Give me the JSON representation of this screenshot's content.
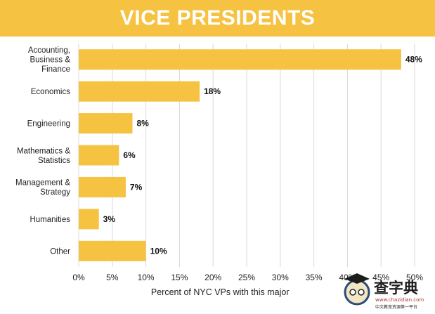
{
  "header": {
    "title": "VICE PRESIDENTS"
  },
  "chart_data": {
    "type": "bar",
    "orientation": "horizontal",
    "categories": [
      [
        "Accounting,",
        "Business &",
        "Finance"
      ],
      [
        "Economics"
      ],
      [
        "Engineering"
      ],
      [
        "Mathematics &",
        "Statistics"
      ],
      [
        "Management &",
        "Strategy"
      ],
      [
        "Humanities"
      ],
      [
        "Other"
      ]
    ],
    "values": [
      48,
      18,
      8,
      6,
      7,
      3,
      10
    ],
    "value_labels": [
      "48%",
      "18%",
      "8%",
      "6%",
      "7%",
      "3%",
      "10%"
    ],
    "xlabel": "Percent of NYC VPs with this major",
    "xticks": [
      "0%",
      "5%",
      "10%",
      "15%",
      "20%",
      "25%",
      "30%",
      "35%",
      "40%",
      "45%",
      "50%"
    ],
    "xlim": [
      0,
      50
    ],
    "grid": true,
    "bar_color": "#f6c242"
  },
  "watermark": {
    "text": "查字典",
    "url": "www.chazidian.com",
    "tagline": "中文教育资源第一平台"
  }
}
